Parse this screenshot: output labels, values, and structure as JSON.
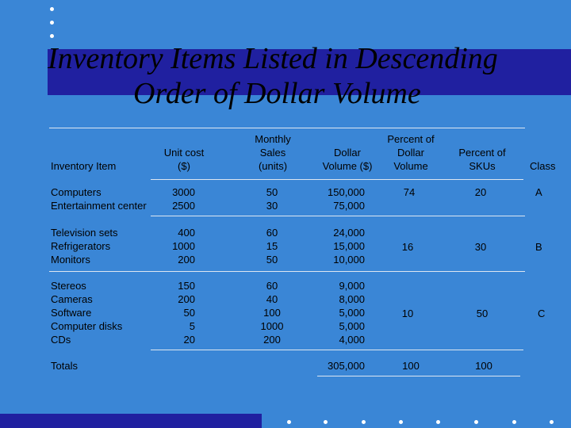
{
  "title": {
    "line1": "Inventory Items Listed in Descending",
    "line2": "Order of Dollar Volume"
  },
  "headers": {
    "item": "Inventory Item",
    "unit_cost": [
      "Unit cost",
      "($)"
    ],
    "monthly_sales": [
      "Monthly",
      "Sales",
      "(units)"
    ],
    "dollar_volume": [
      "Dollar",
      "Volume ($)"
    ],
    "pct_dollar_volume": [
      "Percent of",
      "Dollar",
      "Volume"
    ],
    "pct_skus": [
      "Percent of",
      "SKUs"
    ],
    "class": "Class"
  },
  "groups": [
    {
      "items": [
        "Computers",
        "Entertainment center"
      ],
      "unit_cost": [
        "3000",
        "2500"
      ],
      "monthly_sales": [
        "50",
        "30"
      ],
      "dollar_volume": [
        "150,000",
        "75,000"
      ],
      "pct_dollar_volume": "74",
      "pct_skus": "20",
      "class": "A"
    },
    {
      "items": [
        "Television sets",
        "Refrigerators",
        "Monitors"
      ],
      "unit_cost": [
        "400",
        "1000",
        "200"
      ],
      "monthly_sales": [
        "60",
        "15",
        "50"
      ],
      "dollar_volume": [
        "24,000",
        "15,000",
        "10,000"
      ],
      "pct_dollar_volume": "16",
      "pct_skus": "30",
      "class": "B"
    },
    {
      "items": [
        "Stereos",
        "Cameras",
        "Software",
        "Computer disks",
        "CDs"
      ],
      "unit_cost": [
        "150",
        "200",
        "50",
        "5",
        "20"
      ],
      "monthly_sales": [
        "60",
        "40",
        "100",
        "1000",
        "200"
      ],
      "dollar_volume": [
        "9,000",
        "8,000",
        "5,000",
        "5,000",
        "4,000"
      ],
      "pct_dollar_volume": "10",
      "pct_skus": "50",
      "class": "C"
    }
  ],
  "totals": {
    "label": "Totals",
    "dollar_volume": "305,000",
    "pct_dollar_volume": "100",
    "pct_skus": "100"
  }
}
